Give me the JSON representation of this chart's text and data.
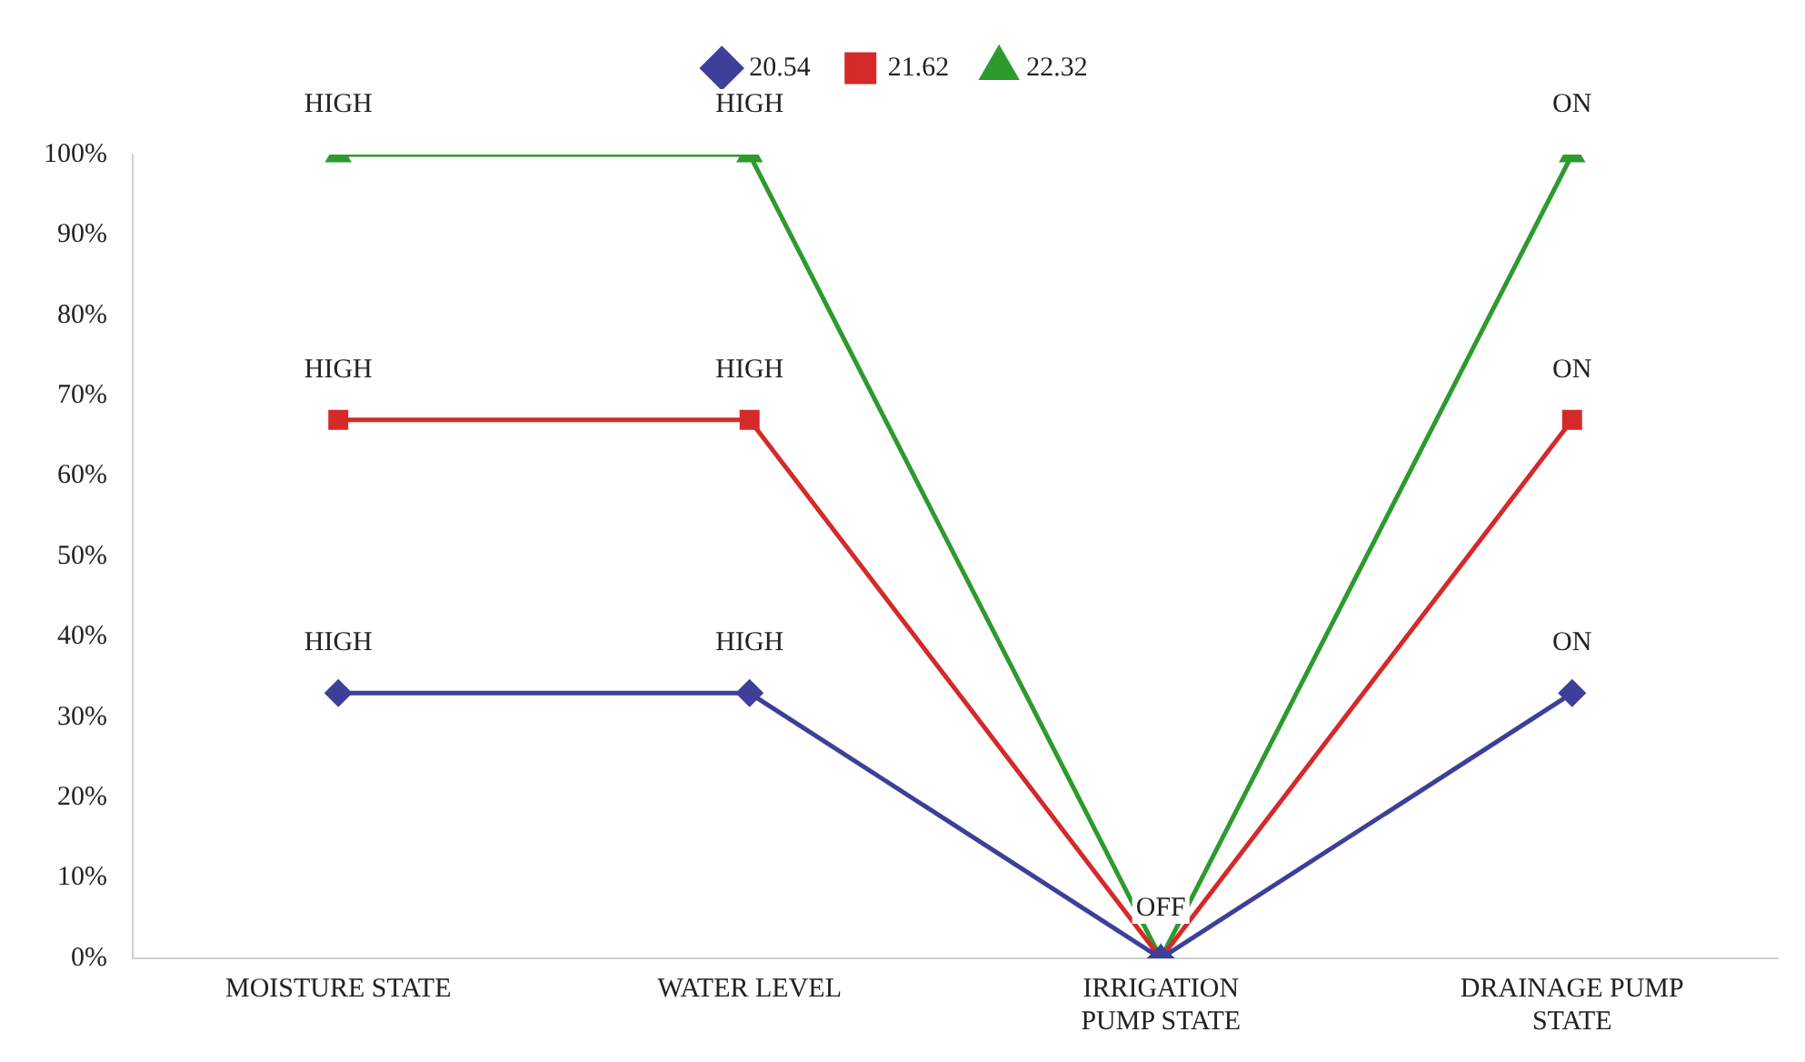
{
  "chart_data": {
    "type": "line",
    "categories": [
      "MOISTURE STATE",
      "WATER LEVEL",
      "IRRIGATION PUMP STATE",
      "DRAINAGE PUMP STATE"
    ],
    "series": [
      {
        "name": "20.54",
        "color": "#3d3f99",
        "marker": "diamond",
        "values": [
          33,
          33,
          0,
          33
        ],
        "value_labels": [
          "HIGH",
          "HIGH",
          null,
          "ON"
        ]
      },
      {
        "name": "21.62",
        "color": "#d42a2a",
        "marker": "square",
        "values": [
          67,
          67,
          0,
          67
        ],
        "value_labels": [
          "HIGH",
          "HIGH",
          null,
          "ON"
        ]
      },
      {
        "name": "22.32",
        "color": "#2e9a2e",
        "marker": "triangle",
        "values": [
          100,
          100,
          0,
          100
        ],
        "value_labels": [
          "HIGH",
          "HIGH",
          "OFF",
          "ON"
        ]
      }
    ],
    "ylim": [
      0,
      100
    ],
    "yticks": [
      {
        "value": 0,
        "label": "0%"
      },
      {
        "value": 10,
        "label": "10%"
      },
      {
        "value": 20,
        "label": "20%"
      },
      {
        "value": 30,
        "label": "30%"
      },
      {
        "value": 40,
        "label": "40%"
      },
      {
        "value": 50,
        "label": "50%"
      },
      {
        "value": 60,
        "label": "60%"
      },
      {
        "value": 70,
        "label": "70%"
      },
      {
        "value": 80,
        "label": "80%"
      },
      {
        "value": 90,
        "label": "90%"
      },
      {
        "value": 100,
        "label": "100%"
      }
    ],
    "grid": false,
    "legend": "top",
    "line_style": "solid"
  }
}
